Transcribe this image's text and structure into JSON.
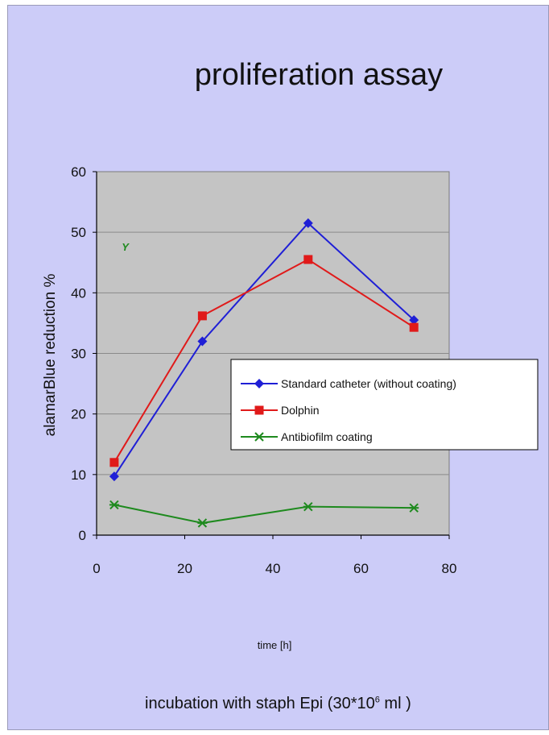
{
  "chart_data": {
    "type": "line",
    "title": "proliferation assay",
    "xlabel": "time [h]",
    "ylabel": "alamarBlue reduction %",
    "xlim": [
      0,
      80
    ],
    "ylim": [
      0,
      60
    ],
    "x_ticks": [
      "0",
      "20",
      "40",
      "60",
      "80"
    ],
    "y_ticks": [
      "0",
      "10",
      "20",
      "30",
      "40",
      "50",
      "60"
    ],
    "grid": "horizontal",
    "legend_position": "center-right",
    "series": [
      {
        "name": "Standard catheter (without coating)",
        "color": "#1f1fd6",
        "marker": "diamond",
        "x": [
          4,
          24,
          48,
          72
        ],
        "y": [
          9.7,
          32,
          51.5,
          35.5
        ]
      },
      {
        "name": "Dolphin",
        "color": "#e01a1a",
        "marker": "square",
        "x": [
          4,
          24,
          48,
          72
        ],
        "y": [
          12,
          36.2,
          45.5,
          34.3
        ]
      },
      {
        "name": "Antibiofilm coating",
        "color": "#1e8a1e",
        "marker": "star",
        "x": [
          4,
          24,
          48,
          72
        ],
        "y": [
          5,
          2,
          4.7,
          4.5
        ]
      }
    ],
    "annotations": [
      {
        "text": "Y",
        "x": 6.5,
        "y": 47.5,
        "color": "#1e8a1e"
      }
    ]
  },
  "caption": {
    "prefix": "incubation with staph Epi (30*10",
    "sup": "6",
    "suffix": " ml   )"
  }
}
